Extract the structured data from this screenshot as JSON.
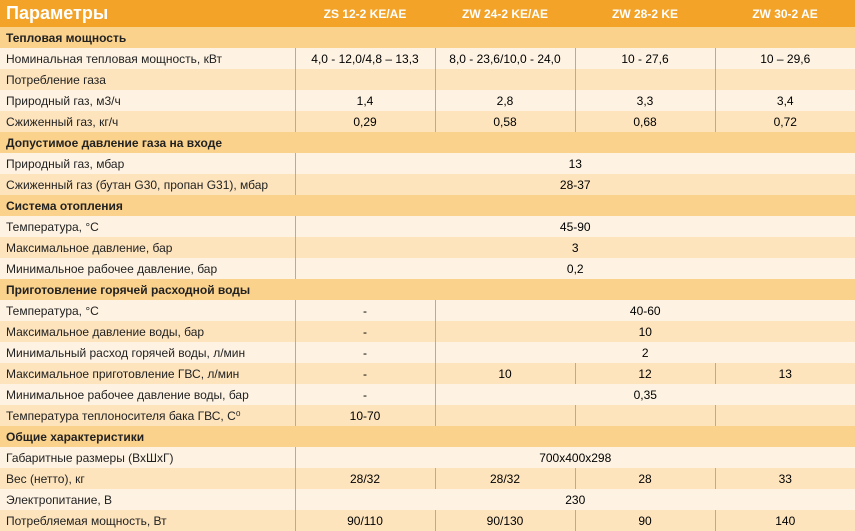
{
  "header": {
    "title": "Параметры",
    "cols": [
      "ZS 12-2 KE/AE",
      "ZW 24-2 KE/AE",
      "ZW 28-2 KE",
      "ZW 30-2 AE"
    ]
  },
  "colors": {
    "header_bg": "#f2a328",
    "section_bg": "#fbd28b",
    "row_light": "#fef3e2",
    "row_alt": "#fde4bd",
    "border": "#f2a328"
  },
  "rows": [
    {
      "type": "section",
      "label": "Тепловая мощность"
    },
    {
      "type": "data",
      "bg": "light",
      "label": "Номинальная тепловая мощность, кВт",
      "cells": [
        "4,0 - 12,0/4,8 – 13,3",
        "8,0 - 23,6/10,0 - 24,0",
        "10 - 27,6",
        "10 – 29,6"
      ]
    },
    {
      "type": "data",
      "bg": "alt",
      "label": "Потребление газа",
      "cells": [
        "",
        "",
        "",
        ""
      ]
    },
    {
      "type": "data",
      "bg": "light",
      "label": "Природный газ, м3/ч",
      "cells": [
        "1,4",
        "2,8",
        "3,3",
        "3,4"
      ]
    },
    {
      "type": "data",
      "bg": "alt",
      "label": "Сжиженный газ, кг/ч",
      "cells": [
        "0,29",
        "0,58",
        "0,68",
        "0,72"
      ]
    },
    {
      "type": "section",
      "label": "Допустимое давление газа на входе"
    },
    {
      "type": "merged",
      "bg": "light",
      "label": "Природный газ, мбар",
      "span_start": 0,
      "span": 4,
      "value": "13"
    },
    {
      "type": "merged",
      "bg": "alt",
      "label": "Сжиженный газ (бутан G30, пропан G31), мбар",
      "span_start": 0,
      "span": 4,
      "value": "28-37"
    },
    {
      "type": "section",
      "label": "Система отопления"
    },
    {
      "type": "merged",
      "bg": "light",
      "label": "Температура, °С",
      "span_start": 0,
      "span": 4,
      "value": "45-90"
    },
    {
      "type": "merged",
      "bg": "alt",
      "label": "Максимальное давление, бар",
      "span_start": 0,
      "span": 4,
      "value": "3"
    },
    {
      "type": "merged",
      "bg": "light",
      "label": "Минимальное рабочее давление, бар",
      "span_start": 0,
      "span": 4,
      "value": "0,2"
    },
    {
      "type": "section",
      "label": "Приготовление горячей расходной воды"
    },
    {
      "type": "split",
      "bg": "light",
      "label": "Температура, °С",
      "left": "-",
      "right_span": 3,
      "right": "40-60"
    },
    {
      "type": "split",
      "bg": "alt",
      "label": "Максимальное давление воды, бар",
      "left": "-",
      "right_span": 3,
      "right": "10"
    },
    {
      "type": "split",
      "bg": "light",
      "label": "Минимальный расход горячей воды, л/мин",
      "left": "-",
      "right_span": 3,
      "right": "2"
    },
    {
      "type": "data",
      "bg": "alt",
      "label": "Максимальное приготовление ГВС, л/мин",
      "cells": [
        "-",
        "10",
        "12",
        "13"
      ]
    },
    {
      "type": "split",
      "bg": "light",
      "label": "Минимальное рабочее давление воды, бар",
      "left": "-",
      "right_span": 3,
      "right": "0,35"
    },
    {
      "type": "data",
      "bg": "alt",
      "label": "Температура теплоносителя бака ГВС, С⁰",
      "cells": [
        "10-70",
        "",
        "",
        ""
      ]
    },
    {
      "type": "section",
      "label": "Общие характеристики"
    },
    {
      "type": "merged",
      "bg": "light",
      "label": "Габаритные размеры (ВхШхГ)",
      "span_start": 0,
      "span": 4,
      "value": "700х400х298"
    },
    {
      "type": "data",
      "bg": "alt",
      "label": "Вес (нетто), кг",
      "cells": [
        "28/32",
        "28/32",
        "28",
        "33"
      ]
    },
    {
      "type": "merged",
      "bg": "light",
      "label": "Электропитание, В",
      "span_start": 0,
      "span": 4,
      "value": "230"
    },
    {
      "type": "data",
      "bg": "alt",
      "label": "Потребляемая мощность, Вт",
      "cells": [
        "90/110",
        "90/130",
        "90",
        "140"
      ]
    }
  ]
}
